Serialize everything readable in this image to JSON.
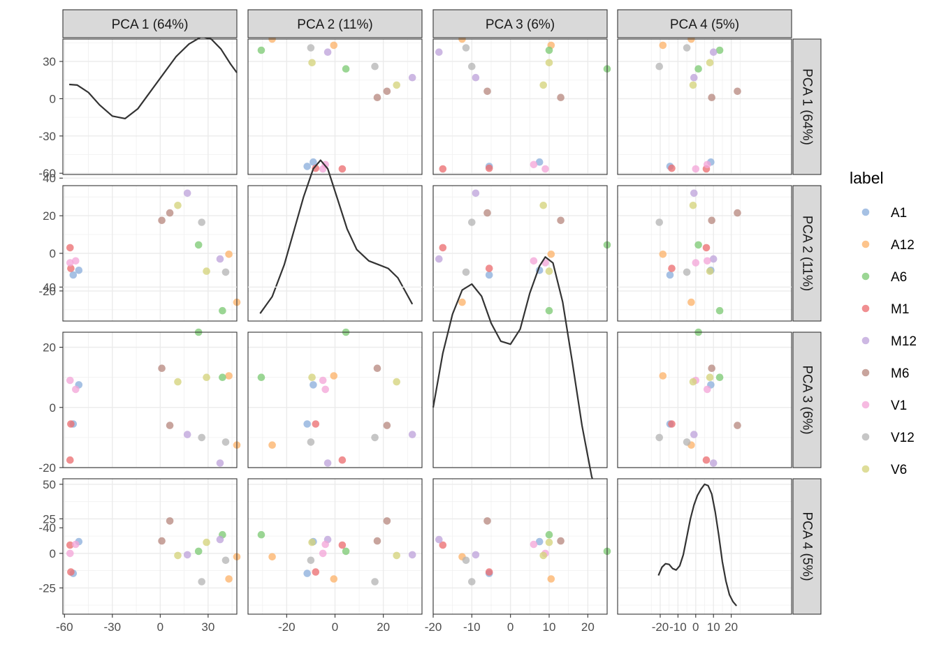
{
  "chart_data": {
    "type": "scatter",
    "variables": [
      "PCA 1",
      "PCA 2",
      "PCA 3",
      "PCA 4"
    ],
    "strip_labels": [
      "PCA 1 (64%)",
      "PCA 2 (11%)",
      "PCA 3 (6%)",
      "PCA 4 (5%)"
    ],
    "axis_ranges": [
      [
        -61,
        48
      ],
      [
        -36,
        36
      ],
      [
        -20,
        25
      ],
      [
        -44,
        54
      ]
    ],
    "x_ticks": [
      {
        "values": [
          -60,
          -30,
          0,
          30
        ],
        "labels": [
          "-60",
          "-30",
          "0",
          "30"
        ]
      },
      {
        "values": [
          -20,
          0,
          20
        ],
        "labels": [
          "-20",
          "0",
          "20"
        ]
      },
      {
        "values": [
          -20,
          -10,
          0,
          10,
          20
        ],
        "labels": [
          "-20",
          "-10",
          "0",
          "10",
          "20"
        ]
      },
      {
        "values": [
          -20,
          -10,
          0,
          10,
          20
        ],
        "labels": [
          "-20",
          "-10",
          "0",
          "10",
          "20"
        ]
      }
    ],
    "y_ticks": [
      {
        "values": [
          -60,
          -30,
          0,
          30
        ],
        "labels": [
          "-60",
          "-30",
          "0",
          "30"
        ]
      },
      {
        "values": [
          -20,
          0,
          20,
          40
        ],
        "labels": [
          "-20",
          "0",
          "20",
          "40"
        ]
      },
      {
        "values": [
          -40,
          -20,
          0,
          20,
          40
        ],
        "labels": [
          "-40",
          "-20",
          "0",
          "20",
          "40"
        ]
      },
      {
        "values": [
          -25,
          0,
          25,
          50
        ],
        "labels": [
          "-25",
          "0",
          "25",
          "50"
        ]
      }
    ],
    "legend": {
      "title": "label",
      "position": "right",
      "items": [
        {
          "label": "A1",
          "color": "#8DB0DC"
        },
        {
          "label": "A12",
          "color": "#FDB46C"
        },
        {
          "label": "A6",
          "color": "#7FCB76"
        },
        {
          "label": "M1",
          "color": "#EC6F72"
        },
        {
          "label": "M12",
          "color": "#BFA4DB"
        },
        {
          "label": "M6",
          "color": "#B88B81"
        },
        {
          "label": "V1",
          "color": "#F4A6D8"
        },
        {
          "label": "V12",
          "color": "#B6B6B6"
        },
        {
          "label": "V6",
          "color": "#D5D47C"
        }
      ]
    },
    "points": [
      {
        "label": "A1",
        "values": [
          -51.0,
          -9.0,
          7.5,
          8.5
        ]
      },
      {
        "label": "A1",
        "values": [
          -54.5,
          -11.5,
          -5.5,
          -14.5
        ]
      },
      {
        "label": "A12",
        "values": [
          48.0,
          -26.0,
          -12.5,
          -2.5
        ]
      },
      {
        "label": "A12",
        "values": [
          43.0,
          -0.5,
          10.5,
          -18.5
        ]
      },
      {
        "label": "A6",
        "values": [
          24.0,
          4.5,
          25.0,
          1.5
        ]
      },
      {
        "label": "A6",
        "values": [
          39.0,
          -30.5,
          10.0,
          13.5
        ]
      },
      {
        "label": "M1",
        "values": [
          -56.5,
          3.0,
          -17.5,
          6.0
        ]
      },
      {
        "label": "M1",
        "values": [
          -56.0,
          -8.0,
          -5.5,
          -13.5
        ]
      },
      {
        "label": "M12",
        "values": [
          17.0,
          32.0,
          -9.0,
          -1.0
        ]
      },
      {
        "label": "M12",
        "values": [
          37.5,
          -3.0,
          -18.5,
          10.0
        ]
      },
      {
        "label": "M6",
        "values": [
          1.0,
          17.5,
          13.0,
          9.0
        ]
      },
      {
        "label": "M6",
        "values": [
          6.0,
          21.5,
          -6.0,
          23.5
        ]
      },
      {
        "label": "V1",
        "values": [
          -56.5,
          -5.0,
          9.0,
          0.0
        ]
      },
      {
        "label": "V1",
        "values": [
          -53.0,
          -4.0,
          6.0,
          6.5
        ]
      },
      {
        "label": "V12",
        "values": [
          26.0,
          16.5,
          -10.0,
          -20.5
        ]
      },
      {
        "label": "V12",
        "values": [
          41.0,
          -10.0,
          -11.5,
          -5.0
        ]
      },
      {
        "label": "V6",
        "values": [
          11.0,
          25.5,
          8.5,
          -1.5
        ]
      },
      {
        "label": "V6",
        "values": [
          29.0,
          -9.5,
          10.0,
          8.0
        ]
      }
    ],
    "density_curves": [
      {
        "x": [
          -57,
          -52,
          -45,
          -38,
          -30,
          -22,
          -14,
          -6,
          2,
          10,
          18,
          26,
          32,
          38,
          44,
          48
        ],
        "y": [
          11.5,
          11,
          5,
          -5,
          -14,
          -16,
          -8,
          6,
          20,
          34,
          44,
          50,
          48,
          40,
          28,
          21
        ]
      },
      {
        "x": [
          -31,
          -26,
          -21,
          -17,
          -13,
          -9,
          -6,
          -3,
          1,
          5,
          9,
          14,
          18,
          22,
          26,
          29,
          32
        ],
        "y": [
          -32,
          -23,
          -6,
          12,
          30,
          45,
          49.5,
          45,
          29,
          13,
          2,
          -4,
          -6,
          -8,
          -13,
          -20,
          -27
        ]
      },
      {
        "x": [
          -20,
          -17.5,
          -15,
          -12.5,
          -10,
          -7.5,
          -5,
          -2.5,
          0,
          2.5,
          5,
          7.5,
          9,
          11,
          13.5,
          16,
          18.5,
          21,
          23.5,
          25
        ],
        "y": [
          0,
          18,
          31,
          39,
          41,
          37,
          28,
          22,
          21,
          26,
          38,
          47,
          50,
          48,
          35,
          15,
          -6,
          -23,
          -33,
          -37
        ]
      },
      {
        "x": [
          -21,
          -19,
          -17,
          -15,
          -13,
          -11,
          -9,
          -7,
          -5,
          -3,
          -1,
          1,
          3,
          5,
          7,
          9,
          11,
          13,
          15,
          17,
          19,
          21,
          23
        ],
        "y": [
          -16,
          -10,
          -7.5,
          -8,
          -11,
          -12,
          -9,
          -1,
          12,
          25,
          35,
          42,
          46.5,
          50,
          49,
          43,
          30,
          13,
          -6,
          -20,
          -30,
          -35,
          -38
        ]
      }
    ]
  }
}
